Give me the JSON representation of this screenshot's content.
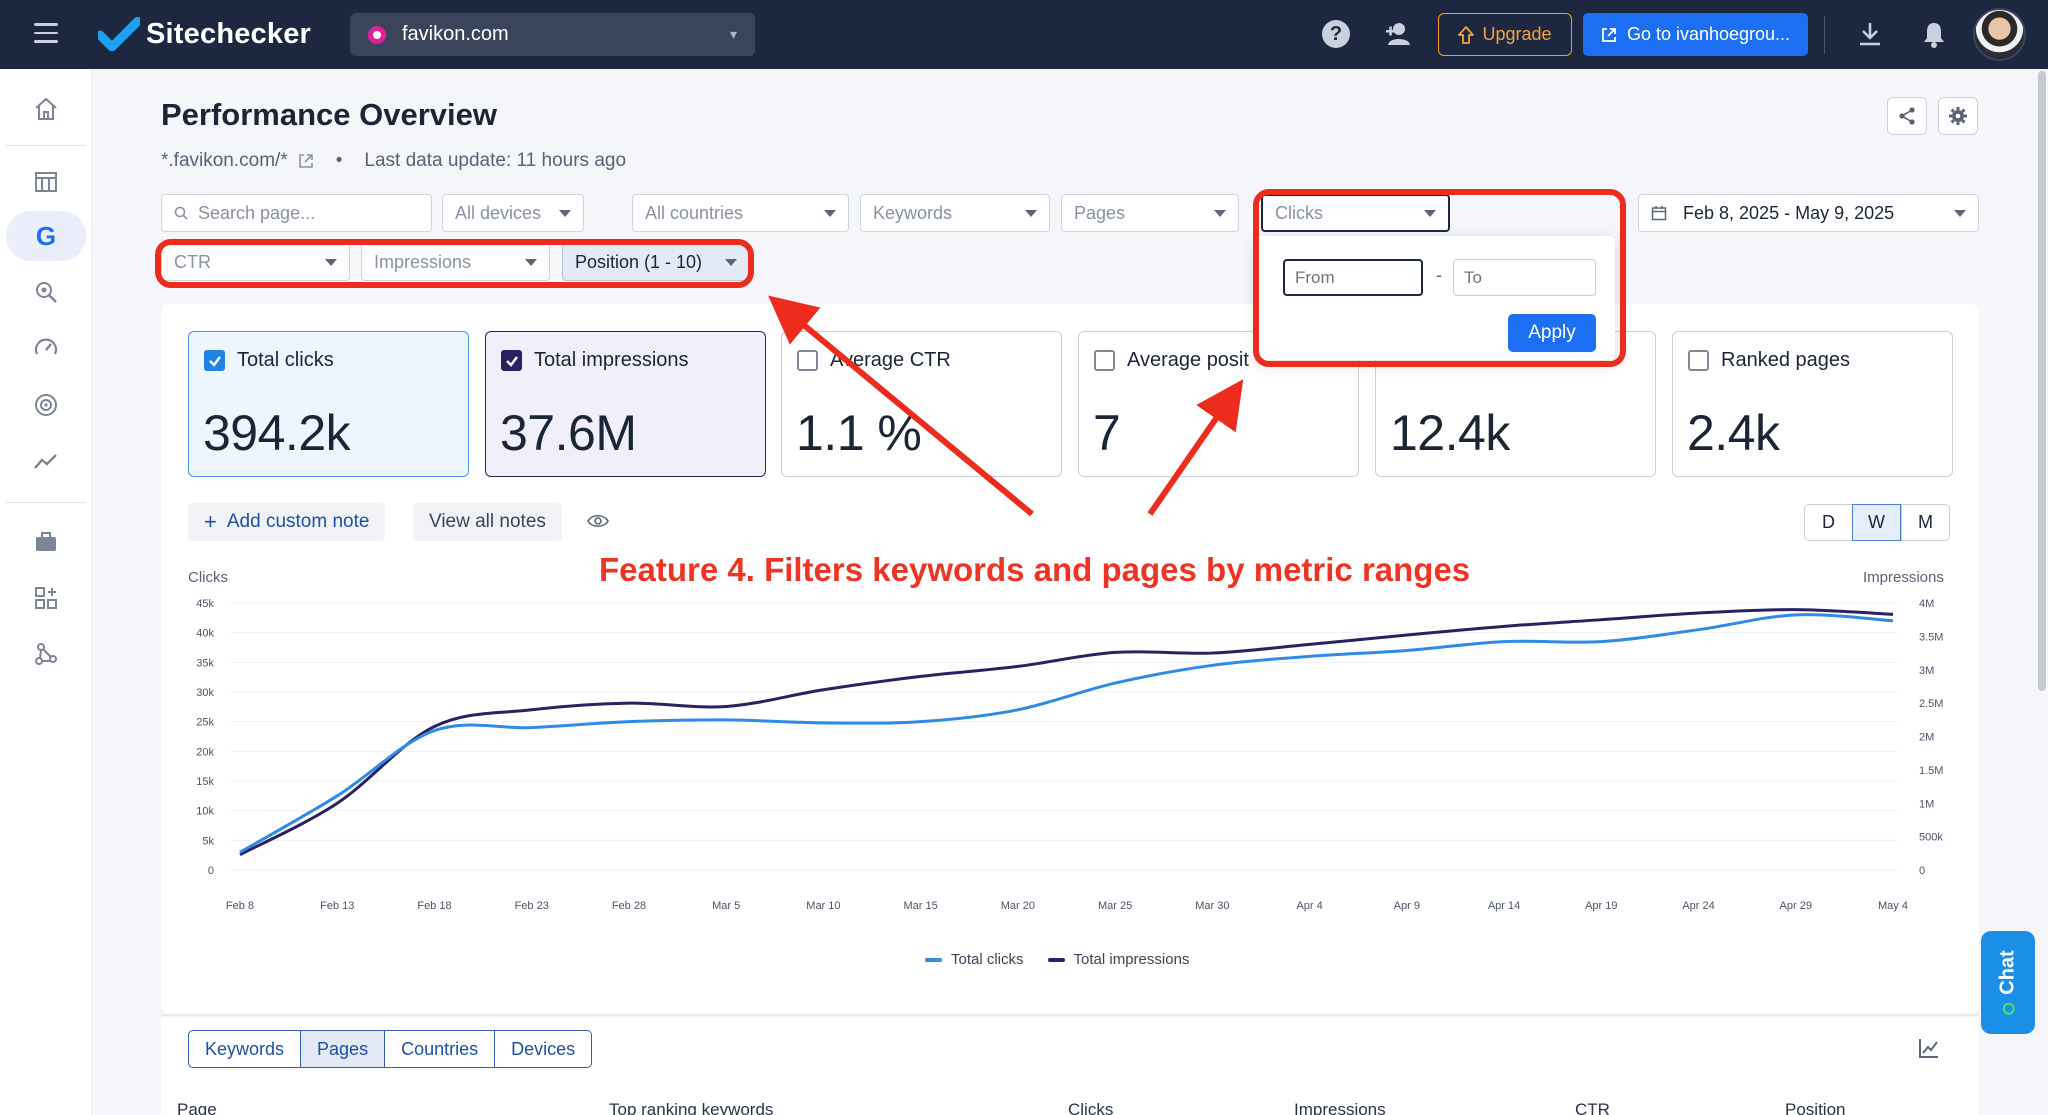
{
  "app": {
    "name": "Sitechecker"
  },
  "topbar": {
    "project": "favikon.com",
    "upgrade_label": "Upgrade",
    "goto_label": "Go to ivanhoegrou..."
  },
  "sidebar": {
    "items": [
      {
        "name": "home-icon"
      },
      {
        "name": "dashboard-icon"
      },
      {
        "name": "google-icon",
        "label": "G"
      },
      {
        "name": "keyword-search-icon"
      },
      {
        "name": "speed-gauge-icon"
      },
      {
        "name": "target-icon"
      },
      {
        "name": "trend-icon"
      },
      {
        "name": "briefcase-icon"
      },
      {
        "name": "apps-add-icon"
      },
      {
        "name": "network-icon"
      }
    ]
  },
  "page": {
    "title": "Performance Overview",
    "domain": "*.favikon.com/*",
    "bullet": "•",
    "last_update": "Last data update: 11 hours ago"
  },
  "filters": {
    "search_placeholder": "Search page...",
    "devices": "All devices",
    "countries": "All countries",
    "keywords": "Keywords",
    "pages": "Pages",
    "clicks": "Clicks",
    "date_range": "Feb 8, 2025 - May 9, 2025",
    "ctr": "CTR",
    "impressions": "Impressions",
    "position": "Position (1 - 10)"
  },
  "range_popup": {
    "from_placeholder": "From",
    "separator": "-",
    "to_placeholder": "To",
    "apply_label": "Apply"
  },
  "metrics": [
    {
      "label": "Total clicks",
      "value": "394.2k",
      "checked": true
    },
    {
      "label": "Total impressions",
      "value": "37.6M",
      "checked": true
    },
    {
      "label": "Average CTR",
      "value": "1.1 %",
      "checked": false
    },
    {
      "label": "Average posit",
      "value": "7",
      "checked": false
    },
    {
      "label": "",
      "value": "12.4k",
      "checked": false
    },
    {
      "label": "Ranked pages",
      "value": "2.4k",
      "checked": false
    }
  ],
  "notes": {
    "add_label": "Add custom note",
    "add_prefix": "+",
    "view_label": "View all notes"
  },
  "granularity": {
    "options": [
      "D",
      "W",
      "M"
    ],
    "selected": "W"
  },
  "annotation": "Feature 4. Filters keywords and pages by metric ranges",
  "chart_data": {
    "type": "line",
    "left_axis_title": "Clicks",
    "right_axis_title": "Impressions",
    "x_ticks": [
      "Feb 8",
      "Feb 13",
      "Feb 18",
      "Feb 23",
      "Feb 28",
      "Mar 5",
      "Mar 10",
      "Mar 15",
      "Mar 20",
      "Mar 25",
      "Mar 30",
      "Apr 4",
      "Apr 9",
      "Apr 14",
      "Apr 19",
      "Apr 24",
      "Apr 29",
      "May 4"
    ],
    "y_left_ticks": [
      "0",
      "5k",
      "10k",
      "15k",
      "20k",
      "25k",
      "30k",
      "35k",
      "40k",
      "45k"
    ],
    "y_left_max": 45000,
    "y_right_ticks": [
      "0",
      "500k",
      "1M",
      "1.5M",
      "2M",
      "2.5M",
      "3M",
      "3.5M",
      "4M"
    ],
    "y_right_max": 4000000,
    "series": [
      {
        "name": "Total clicks",
        "axis": "left",
        "color": "#2f8be6",
        "values": [
          3000,
          12500,
          23500,
          24000,
          25000,
          25300,
          24800,
          25000,
          27000,
          31500,
          34500,
          36000,
          37000,
          38500,
          38500,
          40500,
          43000,
          42000
        ]
      },
      {
        "name": "Total impressions",
        "axis": "right",
        "color": "#2a2161",
        "values": [
          230000,
          1000000,
          2150000,
          2400000,
          2500000,
          2450000,
          2700000,
          2900000,
          3050000,
          3260000,
          3250000,
          3380000,
          3520000,
          3650000,
          3750000,
          3850000,
          3900000,
          3830000
        ]
      }
    ],
    "legend": "bottom-center",
    "grid": true
  },
  "bottom_tabs": {
    "items": [
      "Keywords",
      "Pages",
      "Countries",
      "Devices"
    ],
    "selected": "Pages"
  },
  "table_headers": [
    "Page",
    "Top ranking keywords",
    "Clicks",
    "Impressions",
    "CTR",
    "Position"
  ],
  "chat": {
    "label": "Chat"
  },
  "colors": {
    "accent": "#1c6ef2",
    "highlight_red": "#ee2c1e",
    "topbar": "#1d2840"
  }
}
